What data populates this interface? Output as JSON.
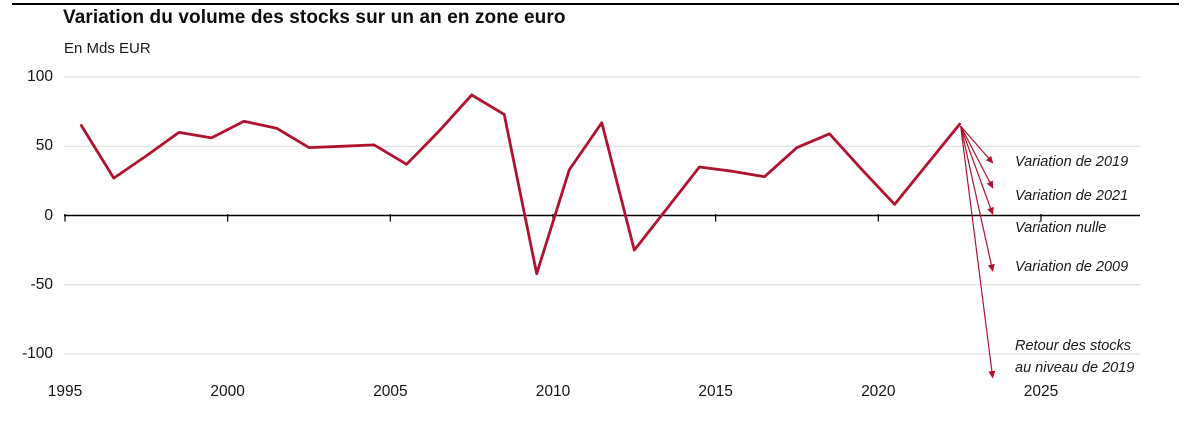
{
  "header": {
    "title": "Variation du volume des stocks sur un an en zone euro",
    "unit_label": "En Mds EUR"
  },
  "chart_data": {
    "type": "line",
    "title": "Variation du volume des stocks sur un an en zone euro",
    "ylabel": "En Mds EUR",
    "ylim": [
      -100,
      100
    ],
    "yticks": [
      100,
      50,
      0,
      -50,
      -100
    ],
    "xticks": [
      1995,
      2000,
      2005,
      2010,
      2015,
      2020,
      2025
    ],
    "grid": "horizontal",
    "line_color": "#b01330",
    "arrow_color": "#b01330",
    "series": [
      {
        "name": "Variation du volume des stocks sur un an",
        "x": [
          1995,
          1996,
          1997,
          1998,
          1999,
          2000,
          2001,
          2002,
          2003,
          2004,
          2005,
          2006,
          2007,
          2008,
          2009,
          2010,
          2011,
          2012,
          2013,
          2014,
          2015,
          2016,
          2017,
          2018,
          2019,
          2020,
          2021,
          2022
        ],
        "values": [
          65,
          27,
          43,
          60,
          56,
          68,
          63,
          49,
          50,
          51,
          37,
          61,
          87,
          73,
          -42,
          33,
          67,
          -25,
          5,
          35,
          32,
          28,
          49,
          59,
          33,
          8,
          37,
          66
        ]
      }
    ],
    "arrow_origin": {
      "year": 2022,
      "value": 66
    },
    "annotations": [
      {
        "label": "Variation de 2019",
        "arrow_to_year": 2023,
        "arrow_to_value": 38
      },
      {
        "label": "Variation de 2021",
        "arrow_to_year": 2023,
        "arrow_to_value": 20
      },
      {
        "label": "Variation nulle",
        "arrow_to_year": 2023,
        "arrow_to_value": 1
      },
      {
        "label": "Variation de 2009",
        "arrow_to_year": 2023,
        "arrow_to_value": -40
      },
      {
        "label": "Retour des stocks\nau niveau de 2019",
        "arrow_to_year": 2023,
        "arrow_to_value": -117
      }
    ]
  }
}
